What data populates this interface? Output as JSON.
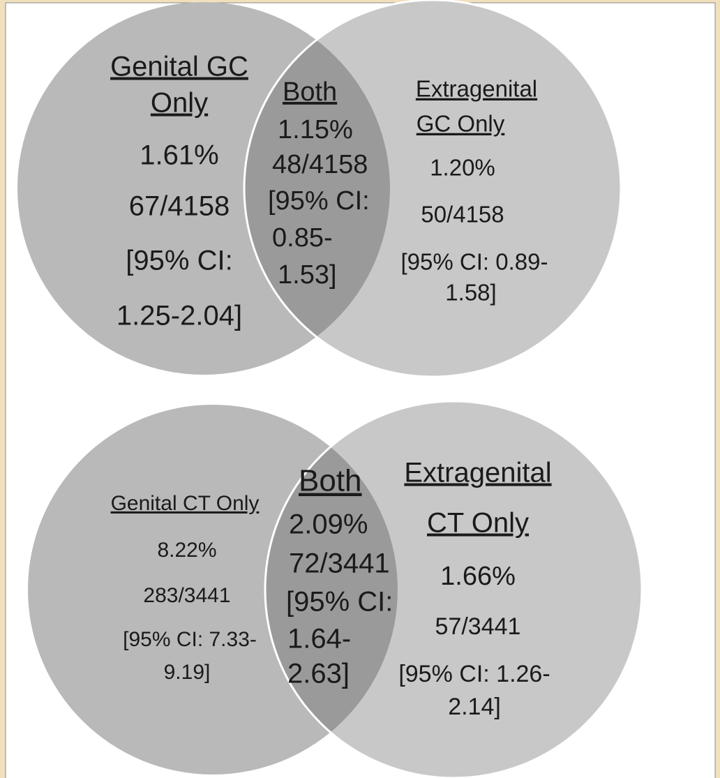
{
  "diagrams": [
    {
      "left": [
        "Genital GC",
        "Only",
        "1.61%",
        "67/4158",
        "[95% CI:",
        "1.25-2.04]"
      ],
      "both": [
        "Both",
        "1.15%",
        "48/4158",
        "[95% CI:",
        "0.85-",
        "1.53]"
      ],
      "right": [
        "Extragenital",
        "GC Only",
        "1.20%",
        "50/4158",
        "[95% CI: 0.89-",
        "1.58]"
      ]
    },
    {
      "left": [
        "Genital CT Only",
        "8.22%",
        "283/3441",
        "[95% CI: 7.33-",
        "9.19]"
      ],
      "both": [
        "Both",
        "2.09%",
        "72/3441",
        "[95% CI:",
        "1.64-",
        "2.63]"
      ],
      "right": [
        "Extragenital",
        "CT Only",
        "1.66%",
        "57/3441",
        "[95% CI: 1.26-",
        "2.14]"
      ]
    }
  ]
}
